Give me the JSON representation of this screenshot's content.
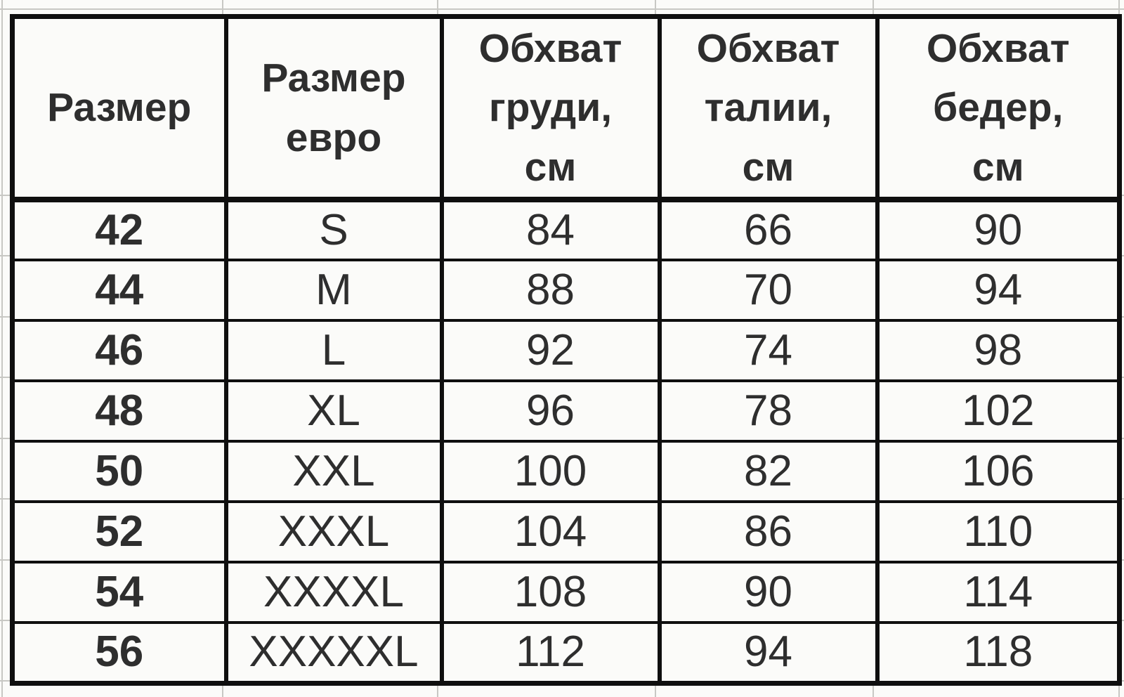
{
  "table": {
    "columns": [
      {
        "label": "Размер"
      },
      {
        "label": "Размер\nевро"
      },
      {
        "label": "Обхват\nгруди,\nсм"
      },
      {
        "label": "Обхват\nталии,\nсм"
      },
      {
        "label": "Обхват\nбедер,\nсм"
      }
    ],
    "rows": [
      {
        "cells": [
          "42",
          "S",
          "84",
          "66",
          "90"
        ]
      },
      {
        "cells": [
          "44",
          "M",
          "88",
          "70",
          "94"
        ]
      },
      {
        "cells": [
          "46",
          "L",
          "92",
          "74",
          "98"
        ]
      },
      {
        "cells": [
          "48",
          "XL",
          "96",
          "78",
          "102"
        ]
      },
      {
        "cells": [
          "50",
          "XXL",
          "100",
          "82",
          "106"
        ]
      },
      {
        "cells": [
          "52",
          "XXXL",
          "104",
          "86",
          "110"
        ]
      },
      {
        "cells": [
          "54",
          "XXXXL",
          "108",
          "90",
          "114"
        ]
      },
      {
        "cells": [
          "56",
          "XXXXXL",
          "112",
          "94",
          "118"
        ]
      }
    ]
  },
  "colors": {
    "border": "#0f0f0f",
    "text": "#2e2e2e",
    "background": "#fbfbf9",
    "gridline": "#c8c8c4"
  }
}
